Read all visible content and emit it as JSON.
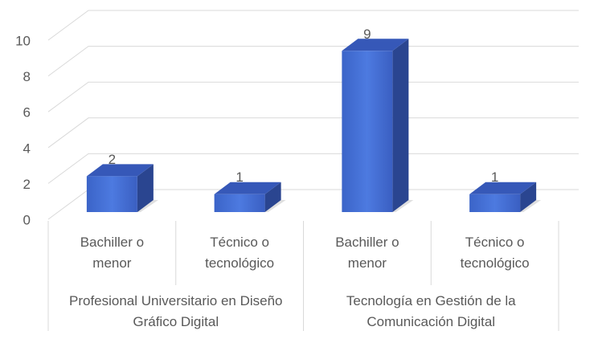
{
  "chart_data": {
    "type": "bar",
    "color": "#4472c4",
    "groups": [
      {
        "label": "Profesional Universitario en Diseño Gráfico Digital",
        "categories": [
          "Bachiller o menor",
          "Técnico o tecnológico"
        ],
        "values": [
          2,
          1
        ]
      },
      {
        "label": "Tecnología en Gestión de la Comunicación Digital",
        "categories": [
          "Bachiller o menor",
          "Técnico o tecnológico"
        ],
        "values": [
          9,
          1
        ]
      }
    ],
    "ylim": [
      0,
      10
    ],
    "yticks": [
      0,
      2,
      4,
      6,
      8,
      10
    ],
    "grid": true
  }
}
